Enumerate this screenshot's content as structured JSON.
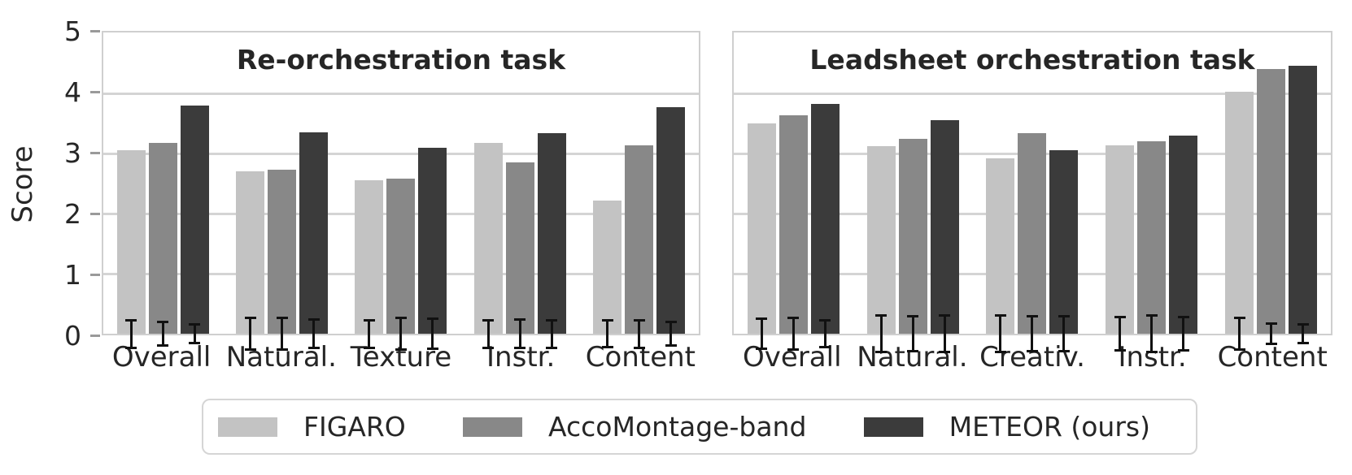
{
  "figure": {
    "ylabel": "Score",
    "yticks": [
      0,
      1,
      2,
      3,
      4,
      5
    ],
    "ylim": [
      0,
      5
    ],
    "grid_color": "#d4d4d4",
    "spine_color": "#cfcfcf",
    "text_color": "#262626"
  },
  "legend": {
    "items": [
      {
        "label": "FIGARO",
        "color": "#c3c3c3"
      },
      {
        "label": "AccoMontage-band",
        "color": "#888888"
      },
      {
        "label": "METEOR (ours)",
        "color": "#3b3b3b"
      }
    ]
  },
  "chart_data": [
    {
      "type": "bar",
      "title": "Re-orchestration task",
      "ylabel": "Score",
      "ylim": [
        0,
        5
      ],
      "grid": true,
      "legend_position": "bottom",
      "categories": [
        "Overall",
        "Natural.",
        "Texture",
        "Instr.",
        "Content"
      ],
      "series": [
        {
          "name": "FIGARO",
          "color": "#c3c3c3",
          "values": [
            3.05,
            2.7,
            2.55,
            3.17,
            2.22
          ],
          "errors": [
            0.25,
            0.28,
            0.25,
            0.25,
            0.24
          ]
        },
        {
          "name": "AccoMontage-band",
          "color": "#888888",
          "values": [
            3.18,
            2.73,
            2.58,
            2.85,
            3.14
          ],
          "errors": [
            0.22,
            0.28,
            0.29,
            0.26,
            0.25
          ]
        },
        {
          "name": "METEOR (ours)",
          "color": "#3b3b3b",
          "values": [
            3.8,
            3.35,
            3.1,
            3.34,
            3.77
          ],
          "errors": [
            0.18,
            0.26,
            0.27,
            0.25,
            0.22
          ]
        }
      ]
    },
    {
      "type": "bar",
      "title": "Leadsheet orchestration task",
      "ylabel": "Score",
      "ylim": [
        0,
        5
      ],
      "grid": true,
      "legend_position": "bottom",
      "categories": [
        "Overall",
        "Natural.",
        "Creativ.",
        "Instr.",
        "Content"
      ],
      "series": [
        {
          "name": "FIGARO",
          "color": "#c3c3c3",
          "values": [
            3.5,
            3.12,
            2.92,
            3.14,
            4.03
          ],
          "errors": [
            0.27,
            0.32,
            0.32,
            0.3,
            0.28
          ]
        },
        {
          "name": "AccoMontage-band",
          "color": "#888888",
          "values": [
            3.63,
            3.24,
            3.34,
            3.2,
            4.41
          ],
          "errors": [
            0.29,
            0.31,
            0.31,
            0.32,
            0.19
          ]
        },
        {
          "name": "METEOR (ours)",
          "color": "#3b3b3b",
          "values": [
            3.83,
            3.55,
            3.05,
            3.3,
            4.46
          ],
          "errors": [
            0.24,
            0.33,
            0.31,
            0.3,
            0.18
          ]
        }
      ]
    }
  ]
}
